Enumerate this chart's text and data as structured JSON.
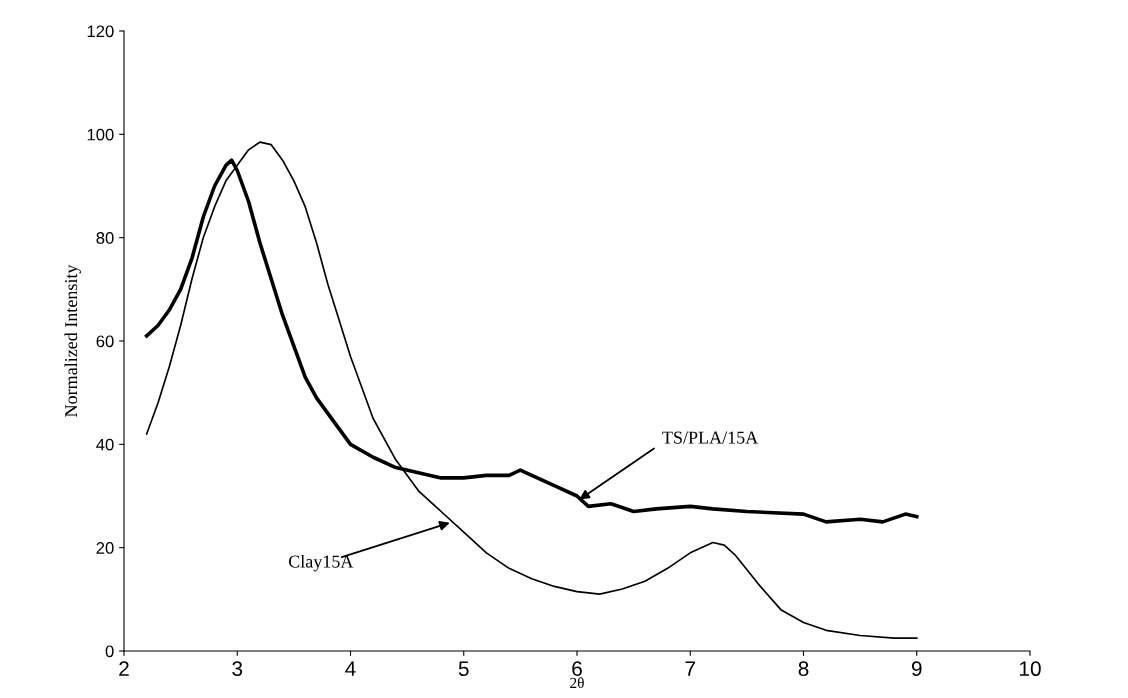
{
  "chart_data": {
    "type": "line",
    "xlabel": "2θ",
    "ylabel": "Normalized Intensity",
    "xlim": [
      2,
      10
    ],
    "xticks": [
      2,
      3,
      4,
      5,
      6,
      7,
      8,
      9,
      10
    ],
    "ylim": [
      0,
      120
    ],
    "yticks": [
      0,
      20,
      40,
      60,
      80,
      100,
      120
    ],
    "grid": false,
    "legend": false,
    "marker": "none",
    "line_style": "solid",
    "series": [
      {
        "color": "#000000",
        "x": [
          2.2,
          2.3,
          2.4,
          2.5,
          2.6,
          2.7,
          2.8,
          2.9,
          2.95,
          3.0,
          3.1,
          3.2,
          3.3,
          3.4,
          3.5,
          3.6,
          3.7,
          3.8,
          3.9,
          4.0,
          4.2,
          4.4,
          4.6,
          4.8,
          5.0,
          5.2,
          5.4,
          5.5,
          5.6,
          5.8,
          6.0,
          6.1,
          6.3,
          6.5,
          6.7,
          7.0,
          7.2,
          7.5,
          8.0,
          8.2,
          8.5,
          8.7,
          8.9,
          9.0
        ],
        "values": [
          61,
          63,
          66,
          70,
          76,
          84,
          90,
          94,
          95,
          93,
          87,
          79,
          72,
          65,
          59,
          53,
          49,
          46,
          43,
          40,
          37.5,
          35.5,
          34.5,
          33.5,
          33.5,
          34,
          34,
          35,
          34,
          32,
          30,
          28,
          28.5,
          27,
          27.5,
          28,
          27.5,
          27,
          26.5,
          25,
          25.5,
          25,
          26.5,
          26
        ]
      },
      {
        "color": "#000000",
        "x": [
          2.2,
          2.3,
          2.4,
          2.5,
          2.6,
          2.7,
          2.8,
          2.9,
          3.0,
          3.1,
          3.2,
          3.3,
          3.4,
          3.5,
          3.6,
          3.7,
          3.8,
          3.9,
          4.0,
          4.2,
          4.4,
          4.6,
          4.8,
          5.0,
          5.2,
          5.4,
          5.6,
          5.8,
          6.0,
          6.2,
          6.4,
          6.6,
          6.8,
          7.0,
          7.2,
          7.3,
          7.4,
          7.6,
          7.8,
          8.0,
          8.2,
          8.5,
          8.8,
          9.0
        ],
        "values": [
          42,
          48,
          55,
          63,
          72,
          80,
          86,
          91,
          94,
          97,
          98.5,
          98,
          95,
          91,
          86,
          79,
          71,
          64,
          57,
          45,
          37,
          31,
          27,
          23,
          19,
          16,
          14,
          12.5,
          11.5,
          11,
          12,
          13.5,
          16,
          19,
          21,
          20.5,
          18.5,
          13,
          8,
          5.5,
          4,
          3,
          2.5,
          2.5
        ]
      }
    ],
    "annotations": [
      {
        "text": "TS/PLA/15A",
        "x": 6.0,
        "y": 29
      },
      {
        "text": "Clay15A",
        "x": 4.9,
        "y": 25
      }
    ]
  }
}
